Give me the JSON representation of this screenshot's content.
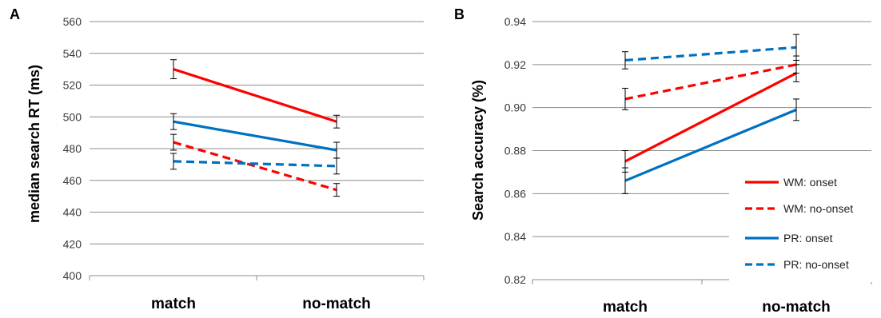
{
  "chart_data": [
    {
      "panel": "A",
      "type": "line",
      "categories": [
        "match",
        "no-match"
      ],
      "ylabel": "median search RT (ms)",
      "xlabel": "",
      "ylim": [
        400,
        560
      ],
      "yticks": [
        "400",
        "420",
        "440",
        "460",
        "480",
        "500",
        "520",
        "540",
        "560"
      ],
      "grid": true,
      "series": [
        {
          "name": "WM: onset",
          "color": "#ff0000",
          "dash": false,
          "values": [
            530,
            497
          ],
          "errors": [
            6,
            4
          ]
        },
        {
          "name": "WM: no-onset",
          "color": "#ff0000",
          "dash": true,
          "values": [
            484,
            454
          ],
          "errors": [
            5,
            4
          ]
        },
        {
          "name": "PR: onset",
          "color": "#0070c0",
          "dash": false,
          "values": [
            497,
            479
          ],
          "errors": [
            5,
            5
          ]
        },
        {
          "name": "PR: no-onset",
          "color": "#0070c0",
          "dash": true,
          "values": [
            472,
            469
          ],
          "errors": [
            5,
            5
          ]
        }
      ]
    },
    {
      "panel": "B",
      "type": "line",
      "categories": [
        "match",
        "no-match"
      ],
      "ylabel": "Search accuracy (%)",
      "xlabel": "",
      "ylim": [
        0.82,
        0.94
      ],
      "yticks": [
        "0.82",
        "0.84",
        "0.86",
        "0.88",
        "0.90",
        "0.92",
        "0.94"
      ],
      "grid": true,
      "legend_position": "bottom-right",
      "series": [
        {
          "name": "WM: onset",
          "color": "#ff0000",
          "dash": false,
          "values": [
            0.875,
            0.916
          ],
          "errors": [
            0.005,
            0.004
          ]
        },
        {
          "name": "WM: no-onset",
          "color": "#ff0000",
          "dash": true,
          "values": [
            0.904,
            0.92
          ],
          "errors": [
            0.005,
            0.004
          ]
        },
        {
          "name": "PR: onset",
          "color": "#0070c0",
          "dash": false,
          "values": [
            0.866,
            0.899
          ],
          "errors": [
            0.006,
            0.005
          ]
        },
        {
          "name": "PR: no-onset",
          "color": "#0070c0",
          "dash": true,
          "values": [
            0.922,
            0.928
          ],
          "errors": [
            0.004,
            0.006
          ]
        }
      ]
    }
  ]
}
